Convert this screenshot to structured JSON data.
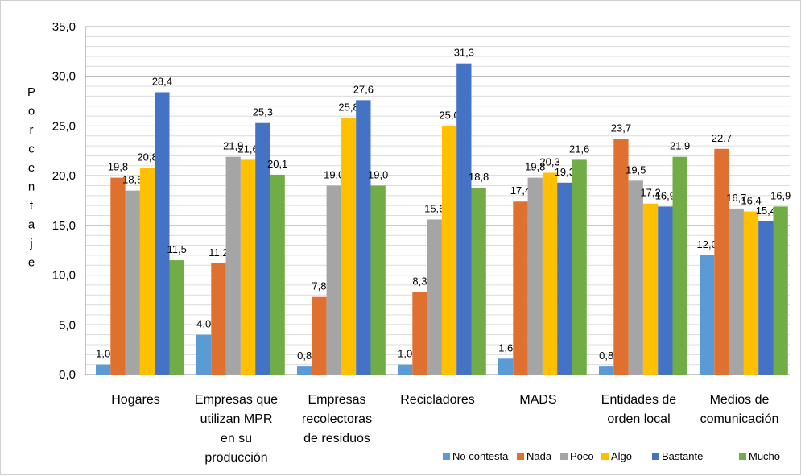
{
  "chart_data": {
    "type": "bar",
    "title": "",
    "ylabel": "Porcentaje",
    "xlabel": "",
    "ylim": [
      0,
      35
    ],
    "ytick_step": 5,
    "ytick_labels": [
      "0,0",
      "5,0",
      "10,0",
      "15,0",
      "20,0",
      "25,0",
      "30,0",
      "35,0"
    ],
    "grid": "horizontal",
    "legend_position": "bottom-right",
    "categories": [
      [
        "Hogares"
      ],
      [
        "Empresas que",
        "utilizan MPR",
        "en su",
        "producción"
      ],
      [
        "Empresas",
        "recolectoras",
        "de residuos"
      ],
      [
        "Recicladores"
      ],
      [
        "MADS"
      ],
      [
        "Entidades de",
        "orden local"
      ],
      [
        "Medios de",
        "comunicación"
      ]
    ],
    "series": [
      {
        "name": "No contesta",
        "color": "#5b9bd5",
        "values": [
          1.0,
          4.0,
          0.8,
          1.0,
          1.6,
          0.8,
          12.0
        ],
        "labels": [
          "1,0",
          "4,0",
          "0,8",
          "1,0",
          "1,6",
          "0,8",
          "12,0"
        ]
      },
      {
        "name": "Nada",
        "color": "#e07030",
        "values": [
          19.8,
          11.2,
          7.8,
          8.3,
          17.4,
          23.7,
          22.7
        ],
        "labels": [
          "19,8",
          "11,2",
          "7,8",
          "8,3",
          "17,4",
          "23,7",
          "22,7"
        ]
      },
      {
        "name": "Poco",
        "color": "#a5a5a5",
        "values": [
          18.5,
          21.9,
          19.0,
          15.6,
          19.8,
          19.5,
          16.7
        ],
        "labels": [
          "18,5",
          "21,9",
          "19,0",
          "15,6",
          "19,8",
          "19,5",
          "16,7"
        ]
      },
      {
        "name": "Algo",
        "color": "#ffc000",
        "values": [
          20.8,
          21.6,
          25.8,
          25.0,
          20.3,
          17.2,
          16.4
        ],
        "labels": [
          "20,8",
          "21,6",
          "25,8",
          "25,0",
          "20,3",
          "17,2",
          "16,4"
        ]
      },
      {
        "name": "Bastante",
        "color": "#4472c4",
        "values": [
          28.4,
          25.3,
          27.6,
          31.3,
          19.3,
          16.9,
          15.4
        ],
        "labels": [
          "28,4",
          "25,3",
          "27,6",
          "31,3",
          "19,3",
          "16,9",
          "15,4"
        ]
      },
      {
        "name": "Mucho",
        "color": "#70ad47",
        "values": [
          11.5,
          20.1,
          19.0,
          18.8,
          21.6,
          21.9,
          16.9
        ],
        "labels": [
          "11,5",
          "20,1",
          "19,0",
          "18,8",
          "21,6",
          "21,9",
          "16,9"
        ]
      }
    ]
  }
}
